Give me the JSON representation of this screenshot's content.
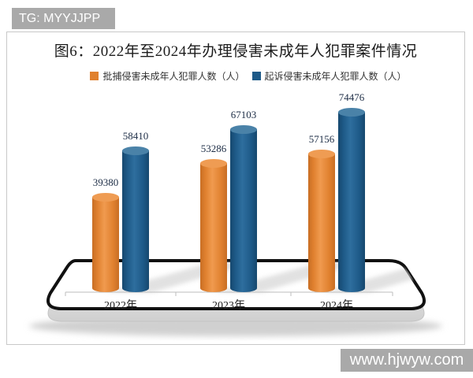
{
  "watermarks": {
    "tg": "TG: MYYJJPP",
    "site": "www.hjwyw.com"
  },
  "chart_data": {
    "type": "bar",
    "title": "图6：2022年至2024年办理侵害未成年人犯罪案件情况",
    "categories": [
      "2022年",
      "2023年",
      "2024年"
    ],
    "series": [
      {
        "name": "批捕侵害未成年人犯罪人数（人）",
        "color": "#e0812f",
        "color_light": "#f09a4f",
        "color_dark": "#c86e24",
        "cap_color": "#ef9c53",
        "values": [
          39380,
          53286,
          57156
        ]
      },
      {
        "name": "起诉侵害未成年人犯罪人数（人）",
        "color": "#1e5a88",
        "color_light": "#2e6e9e",
        "color_dark": "#16486e",
        "cap_color": "#4a82a8",
        "values": [
          58410,
          67103,
          74476
        ]
      }
    ],
    "ylim": [
      0,
      80000
    ],
    "xlabel": "",
    "ylabel": "",
    "grid": false,
    "legend_position": "top",
    "value_labels": true
  },
  "style": {
    "axis_color": "#bdbdbd",
    "watermark_bg": "#a9a9a9",
    "platform_border": "#111111",
    "platform_slab": "#d6d6d6",
    "shadow_color": "#c9c9c9"
  }
}
